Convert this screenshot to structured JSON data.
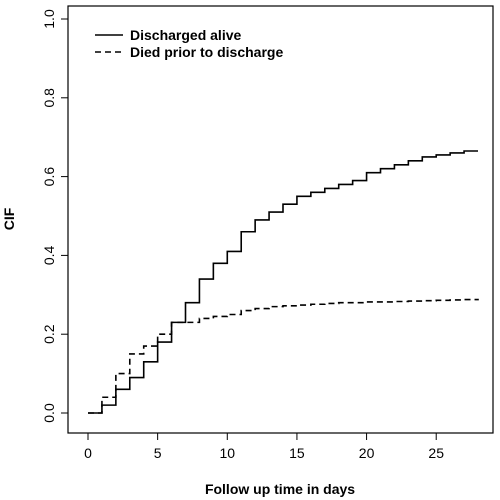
{
  "chart_data": {
    "type": "line",
    "step": true,
    "title": "",
    "xlabel": "Follow up time in days",
    "ylabel": "CIF",
    "xlim": [
      0,
      28
    ],
    "ylim": [
      0,
      1.0
    ],
    "xticks": [
      "0",
      "5",
      "10",
      "15",
      "20",
      "25"
    ],
    "yticks": [
      "0.0",
      "0.2",
      "0.4",
      "0.6",
      "0.8",
      "1.0"
    ],
    "grid": false,
    "legend_position": "top-left",
    "series": [
      {
        "name": "Discharged alive",
        "line_style": "solid",
        "color": "#000000",
        "x": [
          0,
          1,
          2,
          3,
          4,
          5,
          6,
          7,
          8,
          9,
          10,
          11,
          12,
          13,
          14,
          15,
          16,
          17,
          18,
          19,
          20,
          21,
          22,
          23,
          24,
          25,
          26,
          27,
          28
        ],
        "y": [
          0.0,
          0.02,
          0.06,
          0.09,
          0.13,
          0.18,
          0.23,
          0.28,
          0.34,
          0.38,
          0.41,
          0.46,
          0.49,
          0.51,
          0.53,
          0.55,
          0.56,
          0.57,
          0.58,
          0.59,
          0.61,
          0.62,
          0.63,
          0.64,
          0.65,
          0.655,
          0.66,
          0.665,
          0.665
        ]
      },
      {
        "name": "Died prior to discharge",
        "line_style": "dashed",
        "color": "#000000",
        "x": [
          0,
          1,
          2,
          3,
          4,
          5,
          6,
          7,
          8,
          9,
          10,
          11,
          12,
          13,
          14,
          15,
          16,
          17,
          18,
          19,
          20,
          21,
          22,
          23,
          24,
          25,
          26,
          27,
          28
        ],
        "y": [
          0.0,
          0.04,
          0.1,
          0.15,
          0.17,
          0.2,
          0.23,
          0.23,
          0.24,
          0.245,
          0.25,
          0.26,
          0.265,
          0.27,
          0.272,
          0.274,
          0.276,
          0.278,
          0.28,
          0.28,
          0.282,
          0.282,
          0.283,
          0.284,
          0.285,
          0.286,
          0.287,
          0.288,
          0.29
        ]
      }
    ]
  }
}
